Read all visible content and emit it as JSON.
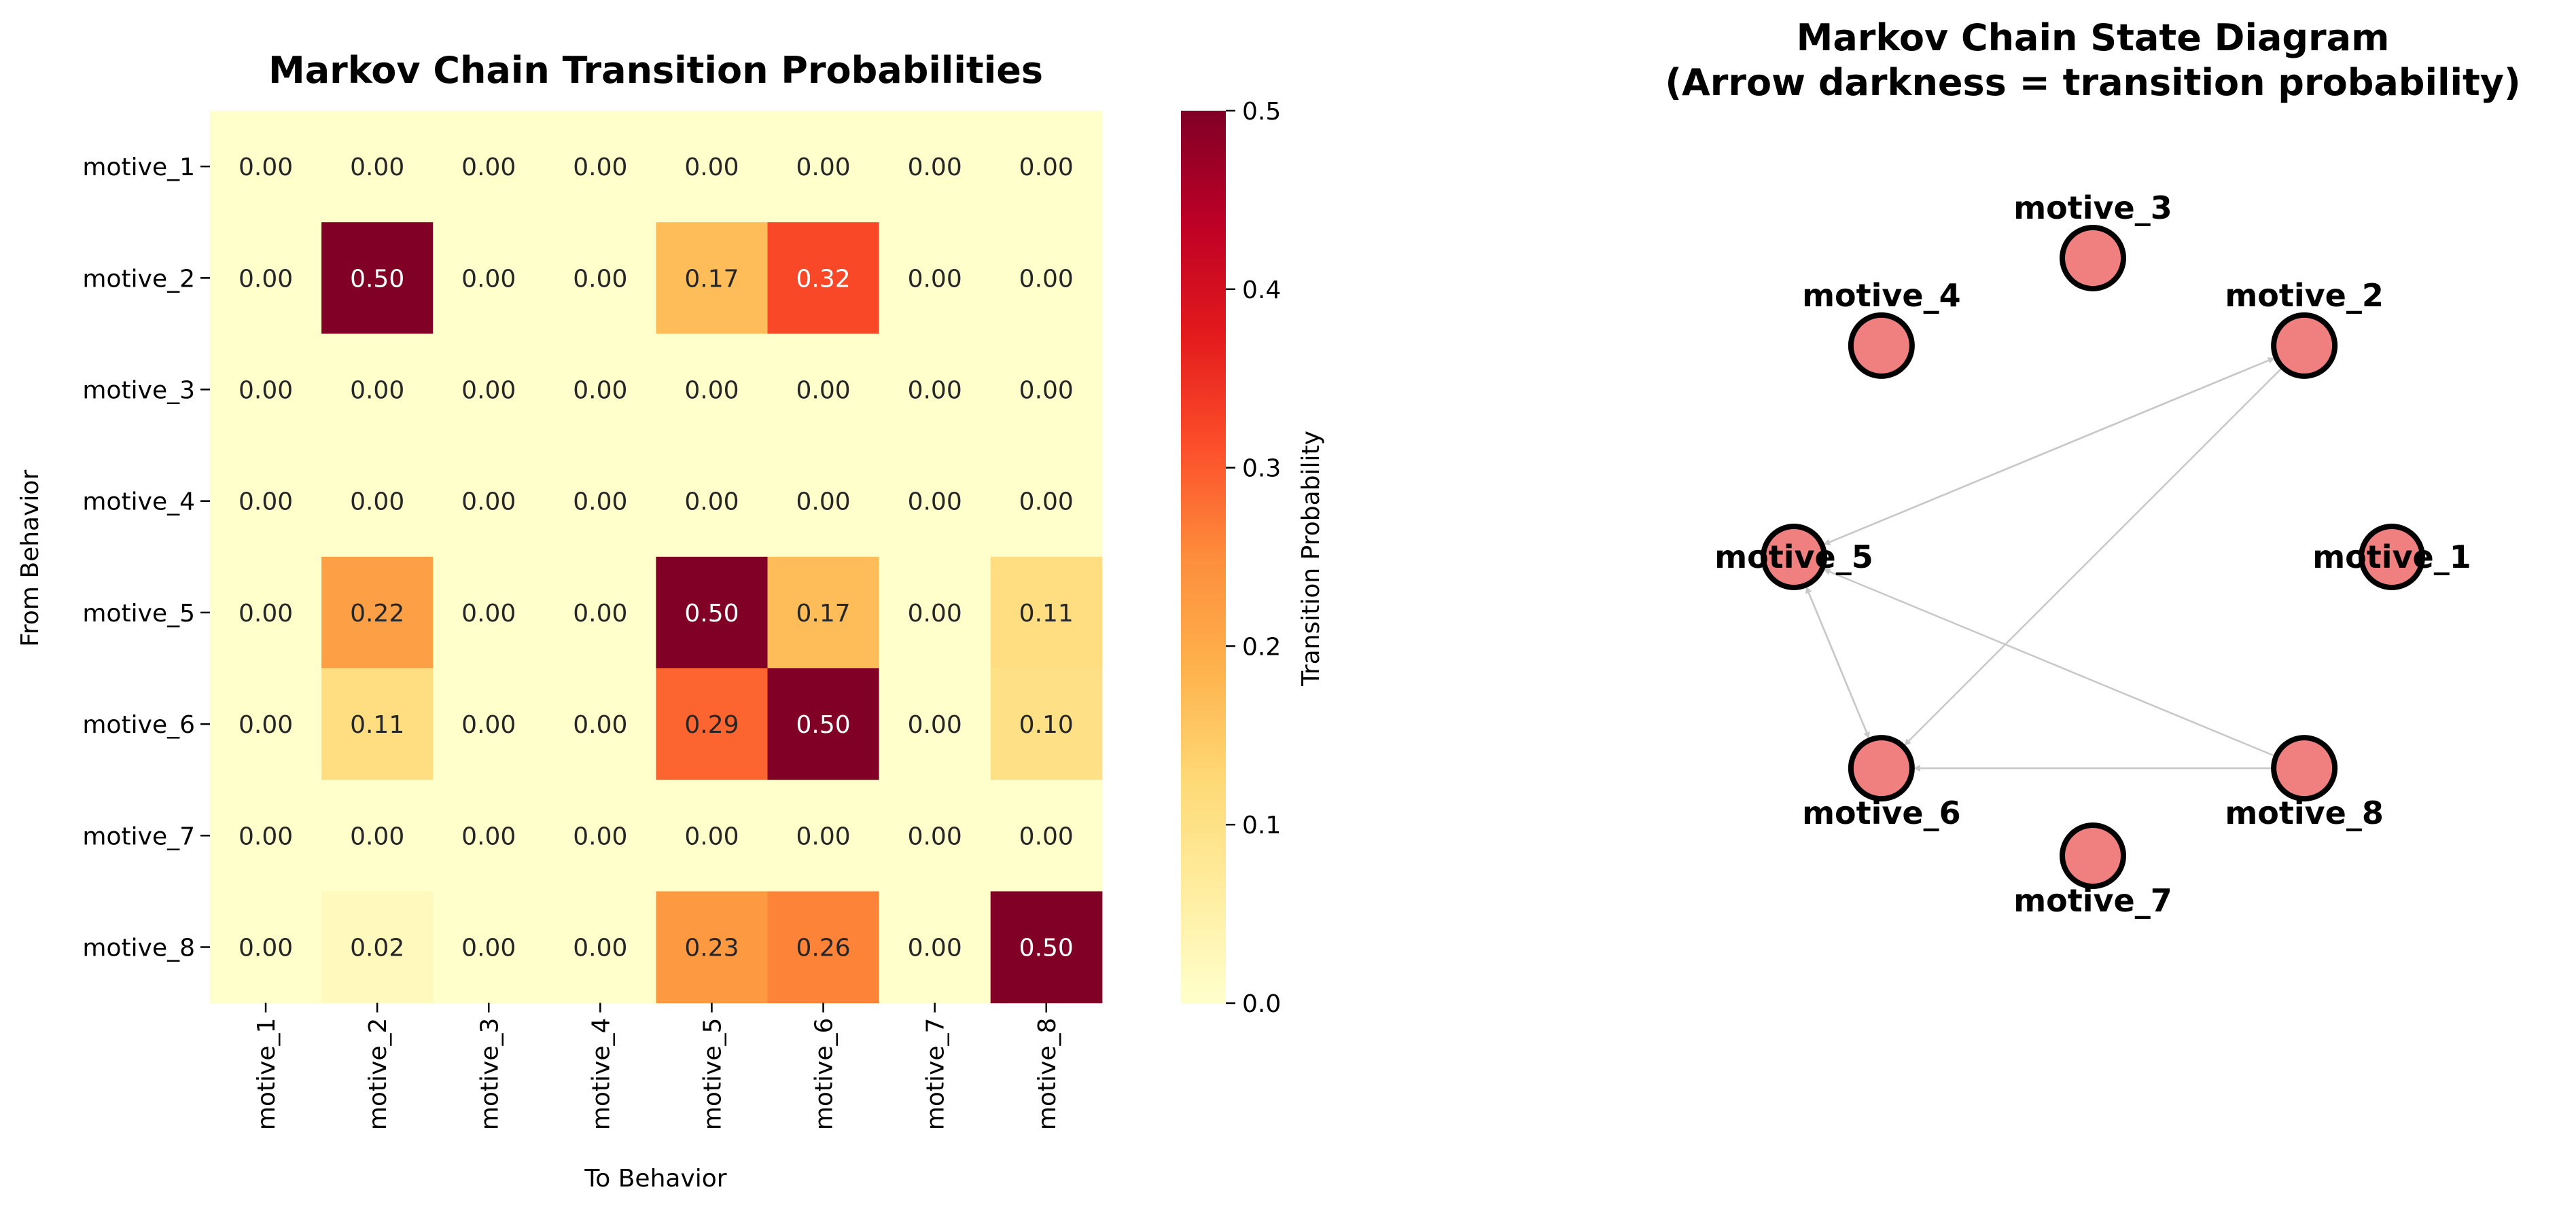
{
  "chart_data": [
    {
      "type": "heatmap",
      "title": "Markov Chain Transition Probabilities",
      "xlabel": "To Behavior",
      "ylabel": "From Behavior",
      "x_categories": [
        "motive_1",
        "motive_2",
        "motive_3",
        "motive_4",
        "motive_5",
        "motive_6",
        "motive_7",
        "motive_8"
      ],
      "y_categories": [
        "motive_1",
        "motive_2",
        "motive_3",
        "motive_4",
        "motive_5",
        "motive_6",
        "motive_7",
        "motive_8"
      ],
      "values": [
        [
          0.0,
          0.0,
          0.0,
          0.0,
          0.0,
          0.0,
          0.0,
          0.0
        ],
        [
          0.0,
          0.5,
          0.0,
          0.0,
          0.17,
          0.32,
          0.0,
          0.0
        ],
        [
          0.0,
          0.0,
          0.0,
          0.0,
          0.0,
          0.0,
          0.0,
          0.0
        ],
        [
          0.0,
          0.0,
          0.0,
          0.0,
          0.0,
          0.0,
          0.0,
          0.0
        ],
        [
          0.0,
          0.22,
          0.0,
          0.0,
          0.5,
          0.17,
          0.0,
          0.11
        ],
        [
          0.0,
          0.11,
          0.0,
          0.0,
          0.29,
          0.5,
          0.0,
          0.1
        ],
        [
          0.0,
          0.0,
          0.0,
          0.0,
          0.0,
          0.0,
          0.0,
          0.0
        ],
        [
          0.0,
          0.02,
          0.0,
          0.0,
          0.23,
          0.26,
          0.0,
          0.5
        ]
      ],
      "colormap": "YlOrRd",
      "colorbar": {
        "label": "Transition Probability",
        "range": [
          0,
          0.5
        ],
        "ticks": [
          0.0,
          0.1,
          0.2,
          0.3,
          0.4,
          0.5
        ],
        "tick_labels": [
          "0.0",
          "0.1",
          "0.2",
          "0.3",
          "0.4",
          "0.5"
        ]
      }
    },
    {
      "type": "diagram",
      "title": "Markov Chain State Diagram",
      "subtitle": "(Arrow darkness = transition probability)",
      "nodes": [
        "motive_1",
        "motive_2",
        "motive_3",
        "motive_4",
        "motive_5",
        "motive_6",
        "motive_7",
        "motive_8"
      ],
      "edges": [
        {
          "from": "motive_2",
          "to": "motive_5"
        },
        {
          "from": "motive_5",
          "to": "motive_2"
        },
        {
          "from": "motive_2",
          "to": "motive_6"
        },
        {
          "from": "motive_5",
          "to": "motive_6"
        },
        {
          "from": "motive_6",
          "to": "motive_5"
        },
        {
          "from": "motive_8",
          "to": "motive_5"
        },
        {
          "from": "motive_8",
          "to": "motive_6"
        }
      ],
      "colors": {
        "node_fill": "#f08080",
        "node_stroke": "#000000",
        "edge": "#c8c8c8"
      }
    }
  ]
}
